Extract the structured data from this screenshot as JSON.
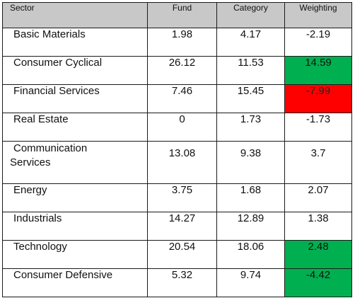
{
  "headers": {
    "sector": "Sector",
    "fund": "Fund",
    "category": "Category",
    "weighting": "Weighting"
  },
  "rows": [
    {
      "sector": "Basic Materials",
      "fund": "1.98",
      "category": "4.17",
      "weighting": "-2.19",
      "highlight": "none"
    },
    {
      "sector": "Consumer Cyclical",
      "fund": "26.12",
      "category": "11.53",
      "weighting": "14.59",
      "highlight": "green"
    },
    {
      "sector": "Financial Services",
      "fund": "7.46",
      "category": "15.45",
      "weighting": "-7.99",
      "highlight": "red"
    },
    {
      "sector": "Real Estate",
      "fund": "0",
      "category": "1.73",
      "weighting": "-1.73",
      "highlight": "none"
    },
    {
      "sector_line1": "Communication",
      "sector_line2": "Services",
      "fund": "13.08",
      "category": "9.38",
      "weighting": "3.7",
      "highlight": "none"
    },
    {
      "sector": "Energy",
      "fund": "3.75",
      "category": "1.68",
      "weighting": "2.07",
      "highlight": "none"
    },
    {
      "sector": "Industrials",
      "fund": "14.27",
      "category": "12.89",
      "weighting": "1.38",
      "highlight": "none"
    },
    {
      "sector": "Technology",
      "fund": "20.54",
      "category": "18.06",
      "weighting": "2.48",
      "highlight": "green"
    },
    {
      "sector": "Consumer Defensive",
      "fund": "5.32",
      "category": "9.74",
      "weighting": "-4.42",
      "highlight": "green"
    }
  ],
  "colors": {
    "header_bg": "#c8c8c8",
    "highlight_green": "#00b050",
    "highlight_red": "#ff0000",
    "border": "#1a1a1a"
  }
}
